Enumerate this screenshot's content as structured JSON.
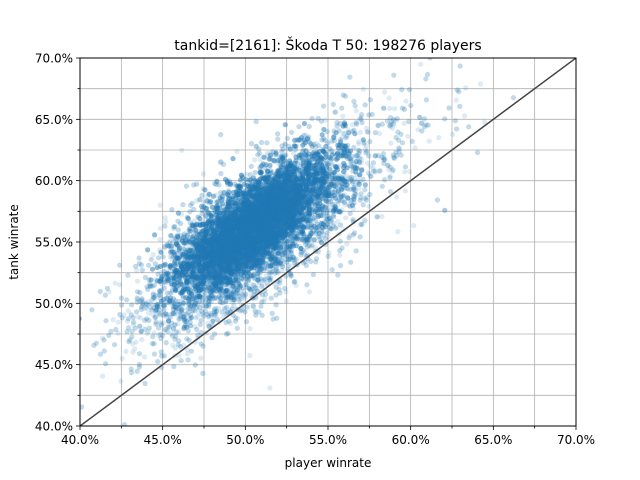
{
  "chart_data": {
    "type": "scatter",
    "title": "tankid=[2161]: Škoda T 50: 198276 players",
    "xlabel": "player winrate",
    "ylabel": "tank winrate",
    "xlim": [
      0.4,
      0.7
    ],
    "ylim": [
      0.4,
      0.7
    ],
    "x_ticks": [
      0.4,
      0.45,
      0.5,
      0.55,
      0.6,
      0.65,
      0.7
    ],
    "y_ticks": [
      0.4,
      0.45,
      0.5,
      0.55,
      0.6,
      0.65,
      0.7
    ],
    "x_tick_labels": [
      "40.0%",
      "45.0%",
      "50.0%",
      "55.0%",
      "60.0%",
      "65.0%",
      "70.0%"
    ],
    "y_tick_labels": [
      "40.0%",
      "45.0%",
      "50.0%",
      "55.0%",
      "60.0%",
      "65.0%",
      "70.0%"
    ],
    "grid": true,
    "point_color": "#1f77b4",
    "point_count": 198276,
    "reference_line": {
      "x": [
        0.4,
        0.7
      ],
      "y": [
        0.4,
        0.7
      ],
      "color": "#444444"
    }
  }
}
